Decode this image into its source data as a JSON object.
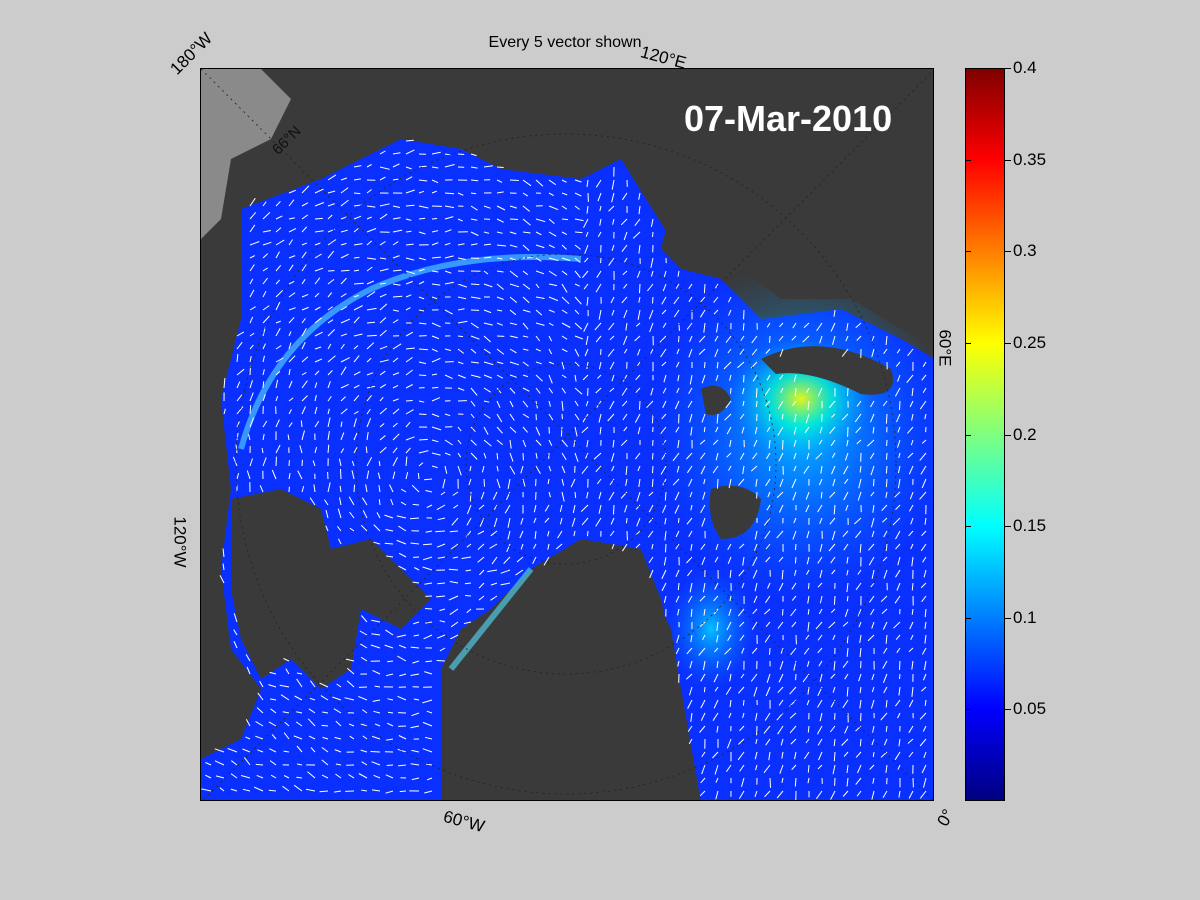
{
  "figure": {
    "title": "Every 5 vector shown",
    "date": "07-Mar-2010"
  },
  "map": {
    "type": "polar-stereographic",
    "region": "Arctic Ocean",
    "projection_labels": {
      "lon_180W": "180°W",
      "lon_120E": "120°E",
      "lon_60E": "60°E",
      "lon_120W": "120°W",
      "lon_60W": "60°W",
      "lon_0": "0°",
      "lat_66N": "66°N"
    },
    "colors": {
      "ocean_low": "#0a2cff",
      "land": "#3a3a3a",
      "unmapped_land": "#8a8a8a",
      "vectors": "#ffffff",
      "date_text": "#ffffff"
    }
  },
  "colorbar": {
    "min": 0,
    "max": 0.4,
    "ticks": [
      "0.05",
      "0.1",
      "0.15",
      "0.2",
      "0.25",
      "0.3",
      "0.35",
      "0.4"
    ],
    "tick_values": [
      0.05,
      0.1,
      0.15,
      0.2,
      0.25,
      0.3,
      0.35,
      0.4
    ],
    "colormap": "jet"
  }
}
